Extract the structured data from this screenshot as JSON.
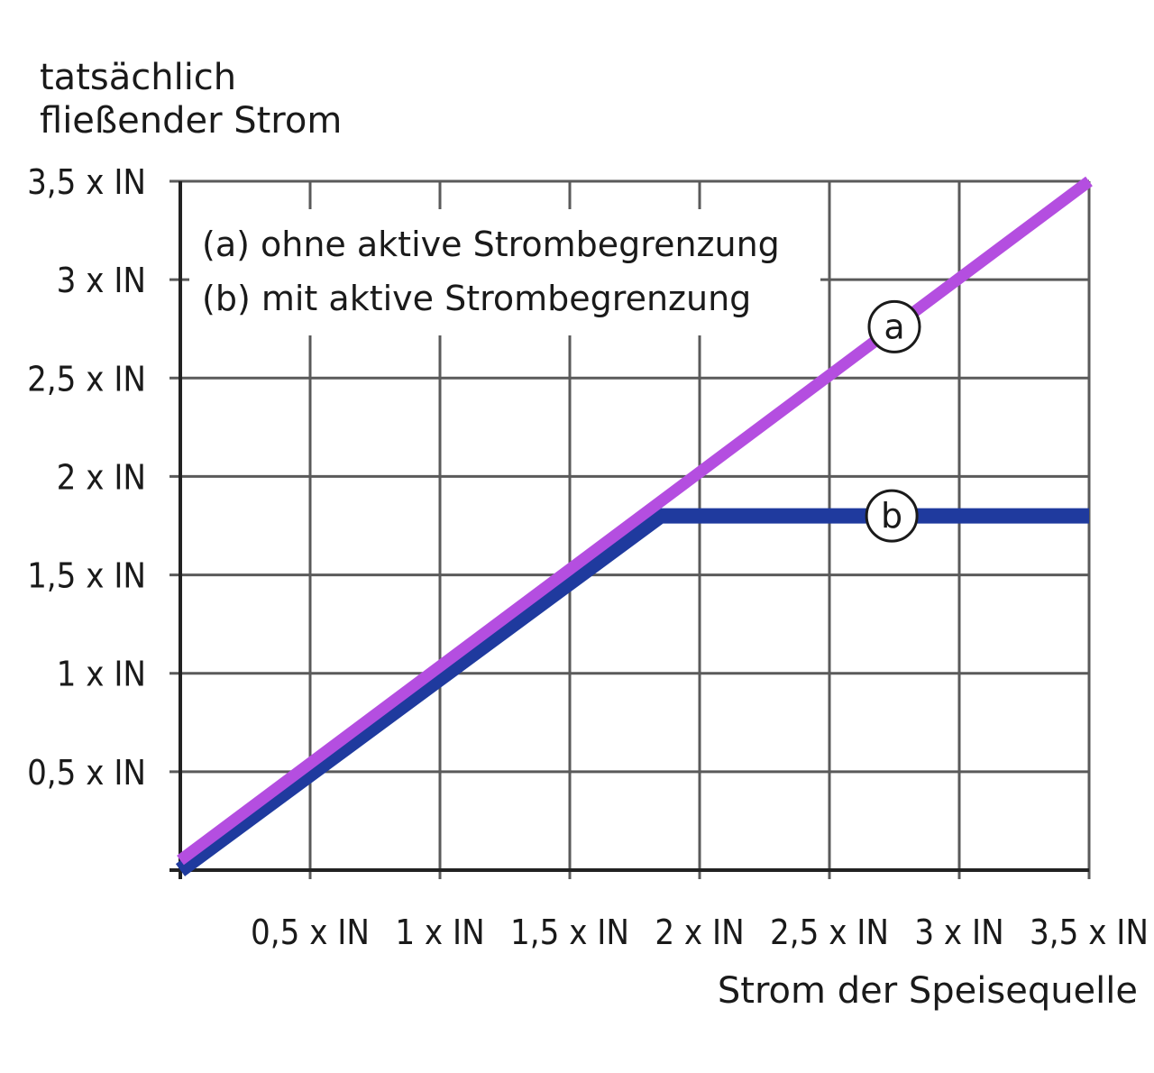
{
  "chart_data": {
    "type": "line",
    "ylabel_lines": [
      "tatsächlich",
      "fließender Strom"
    ],
    "xlabel": "Strom der Speisequelle",
    "x_ticks": [
      "0,5 x IN",
      "1 x IN",
      "1,5 x IN",
      "2 x IN",
      "2,5 x IN",
      "3 x IN",
      "3,5 x IN"
    ],
    "y_ticks": [
      "0,5 x IN",
      "1 x IN",
      "1,5 x IN",
      "2 x IN",
      "2,5 x IN",
      "3 x IN",
      "3,5 x IN"
    ],
    "xlim": [
      0,
      3.5
    ],
    "ylim": [
      0,
      3.5
    ],
    "grid": true,
    "legend": [
      "(a) ohne aktive Strombegrenzung",
      "(b) mit aktive Strombegrenzung"
    ],
    "series": [
      {
        "name": "a",
        "color": "#b44ee0",
        "x": [
          0,
          3.5
        ],
        "y": [
          0.05,
          3.5
        ]
      },
      {
        "name": "b",
        "color": "#1f3a9e",
        "x": [
          0,
          1.85,
          3.5
        ],
        "y": [
          0,
          1.8,
          1.8
        ]
      }
    ]
  }
}
